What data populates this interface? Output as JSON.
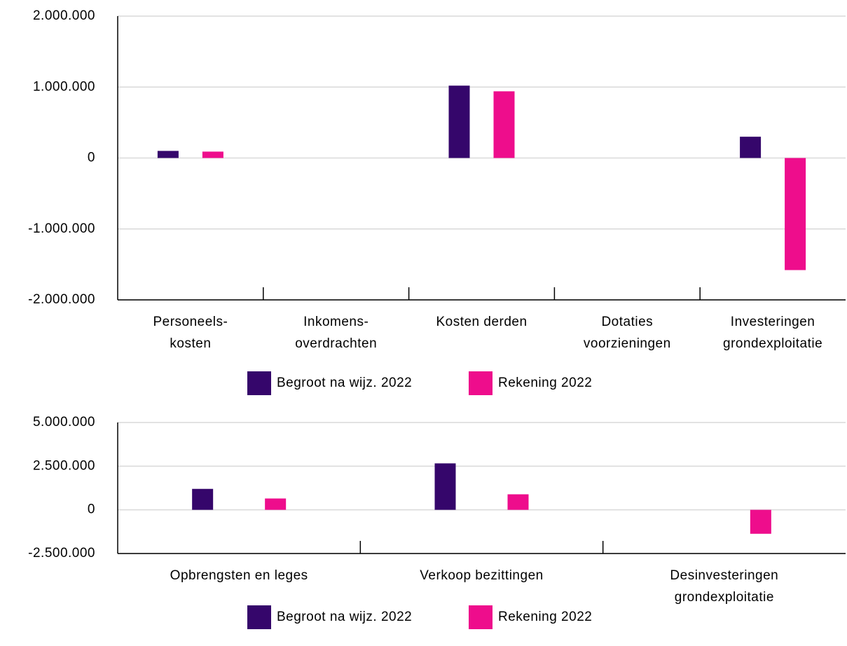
{
  "chart_data": [
    {
      "type": "bar",
      "categories": [
        "Personeels-\nkosten",
        "Inkomens-\noverdrachten",
        "Kosten derden",
        "Dotaties\nvoorzieningen",
        "Investeringen\ngrondexploitatie"
      ],
      "series": [
        {
          "name": "Begroot na wijz. 2022",
          "color": "#35066b",
          "values": [
            100000,
            0,
            1020000,
            0,
            300000
          ]
        },
        {
          "name": "Rekening 2022",
          "color": "#ee0d8c",
          "values": [
            90000,
            0,
            940000,
            0,
            -1580000
          ]
        }
      ],
      "ylim": [
        -2000000,
        2000000
      ],
      "yticks": [
        {
          "value": -2000000,
          "label": "-2.000.000"
        },
        {
          "value": -1000000,
          "label": "-1.000.000"
        },
        0,
        {
          "value": 1000000,
          "label": "1.000.000"
        },
        {
          "value": 2000000,
          "label": "2.000.000"
        }
      ],
      "grid": true,
      "legend": "bottom"
    },
    {
      "type": "bar",
      "categories": [
        "Opbrengsten en leges",
        "Verkoop bezittingen",
        "Desinvesteringen\ngrondexploitatie"
      ],
      "series": [
        {
          "name": "Begroot na wijz. 2022",
          "color": "#35066b",
          "values": [
            1200000,
            2660000,
            0
          ]
        },
        {
          "name": "Rekening 2022",
          "color": "#ee0d8c",
          "values": [
            650000,
            890000,
            -1370000
          ]
        }
      ],
      "ylim": [
        -2500000,
        5000000
      ],
      "yticks": [
        {
          "value": -2500000,
          "label": "-2.500.000"
        },
        0,
        {
          "value": 2500000,
          "label": "2.500.000"
        },
        {
          "value": 5000000,
          "label": "5.000.000"
        }
      ],
      "grid": true,
      "legend": "bottom"
    }
  ]
}
